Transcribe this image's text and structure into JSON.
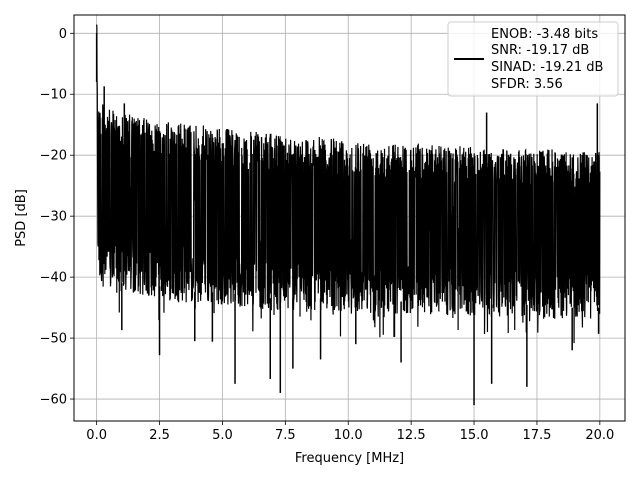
{
  "chart_data": {
    "type": "line",
    "title": "",
    "xlabel": "Frequency [MHz]",
    "ylabel": "PSD [dB]",
    "xlim": [
      -0.9,
      21.0
    ],
    "ylim": [
      -63.6,
      3.0
    ],
    "xticks": [
      0.0,
      2.5,
      5.0,
      7.5,
      10.0,
      12.5,
      15.0,
      17.5,
      20.0
    ],
    "xtick_labels": [
      "0.0",
      "2.5",
      "5.0",
      "7.5",
      "10.0",
      "12.5",
      "15.0",
      "17.5",
      "20.0"
    ],
    "yticks": [
      0,
      -10,
      -20,
      -30,
      -40,
      -50,
      -60
    ],
    "ytick_labels": [
      "0",
      "−10",
      "−20",
      "−30",
      "−40",
      "−50",
      "−60"
    ],
    "grid": true,
    "legend_position": "upper right",
    "line_color": "#000000",
    "series": [
      {
        "legend_lines": [
          "ENOB: -3.48 bits",
          "SNR: -19.17 dB",
          "SINAD: -19.21 dB",
          "SFDR: 3.56"
        ],
        "envelope": {
          "x": [
            0.0,
            0.05,
            0.1,
            0.5,
            1.0,
            2.0,
            3.0,
            4.0,
            5.0,
            6.0,
            7.0,
            8.0,
            9.0,
            10.0,
            11.0,
            12.0,
            13.0,
            14.0,
            15.0,
            16.0,
            17.0,
            18.0,
            19.0,
            20.0
          ],
          "upper": [
            0.0,
            -8.0,
            -11.0,
            -12.5,
            -13.0,
            -14.0,
            -14.5,
            -15.0,
            -15.5,
            -16.0,
            -16.5,
            -17.0,
            -17.0,
            -17.5,
            -17.5,
            -18.0,
            -18.0,
            -18.5,
            -18.5,
            -19.0,
            -19.0,
            -19.0,
            -19.5,
            -19.5
          ],
          "lower": [
            -5.0,
            -40.0,
            -45.0,
            -46.5,
            -47.0,
            -47.0,
            -48.0,
            -48.5,
            -48.5,
            -49.0,
            -49.5,
            -49.5,
            -49.5,
            -50.0,
            -50.0,
            -50.0,
            -50.0,
            -50.5,
            -50.5,
            -50.5,
            -50.5,
            -51.0,
            -51.0,
            -51.0
          ]
        },
        "peaks": [
          {
            "x": 0.0,
            "y": 0.0
          },
          {
            "x": 2.5,
            "y": -52.8
          },
          {
            "x": 3.9,
            "y": -50.5
          },
          {
            "x": 5.5,
            "y": -57.5
          },
          {
            "x": 6.9,
            "y": -56.7
          },
          {
            "x": 7.3,
            "y": -59.0
          },
          {
            "x": 7.8,
            "y": -55.0
          },
          {
            "x": 8.9,
            "y": -53.5
          },
          {
            "x": 12.1,
            "y": -54.0
          },
          {
            "x": 15.0,
            "y": -61.0
          },
          {
            "x": 15.7,
            "y": -57.5
          },
          {
            "x": 17.1,
            "y": -58.0
          },
          {
            "x": 1.0,
            "y": -48.7
          },
          {
            "x": 4.6,
            "y": -50.6
          },
          {
            "x": 10.3,
            "y": -51.0
          },
          {
            "x": 18.9,
            "y": -52.0
          },
          {
            "x": 19.95,
            "y": -49.3
          },
          {
            "x": 0.3,
            "y": -8.7
          },
          {
            "x": 1.1,
            "y": -11.5
          },
          {
            "x": 19.9,
            "y": -11.5
          },
          {
            "x": 15.5,
            "y": -13.0
          }
        ]
      }
    ]
  }
}
